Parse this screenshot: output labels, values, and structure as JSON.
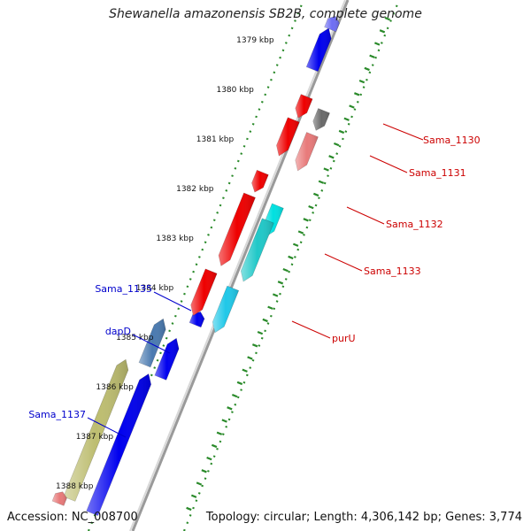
{
  "title": "Shewanella amazonensis SB2B, complete genome",
  "footer": {
    "accession": "Accession: NC_008700",
    "topology": "Topology: circular; Length: 4,306,142 bp; Genes: 3,774"
  },
  "colors": {
    "backbone": "#9a9a9a",
    "tick_major": "#2a8a2a",
    "forward_strand": "#0000ee",
    "reverse_strand": "#ee0000",
    "pseudo": "#6a6a6a",
    "pink": "#e87a7a",
    "cyan": "#00e0e0",
    "light_cyan": "#20c8e8",
    "steel": "#4a7ab0",
    "olive": "#bdbd70",
    "forward_label": "#0000cc",
    "reverse_label": "#cc0000"
  },
  "scale_labels": [
    "1379 kbp",
    "1380 kbp",
    "1381 kbp",
    "1382 kbp",
    "1383 kbp",
    "1384 kbp",
    "1385 kbp",
    "1386 kbp",
    "1387 kbp",
    "1388 kbp"
  ],
  "gene_labels": [
    {
      "text": "Sama_1130",
      "strand": "reverse"
    },
    {
      "text": "Sama_1131",
      "strand": "reverse"
    },
    {
      "text": "Sama_1132",
      "strand": "reverse"
    },
    {
      "text": "Sama_1133",
      "strand": "reverse"
    },
    {
      "text": "purU",
      "strand": "reverse"
    },
    {
      "text": "Sama_1135",
      "strand": "forward"
    },
    {
      "text": "dapD",
      "strand": "forward"
    },
    {
      "text": "Sama_1137",
      "strand": "forward"
    }
  ]
}
